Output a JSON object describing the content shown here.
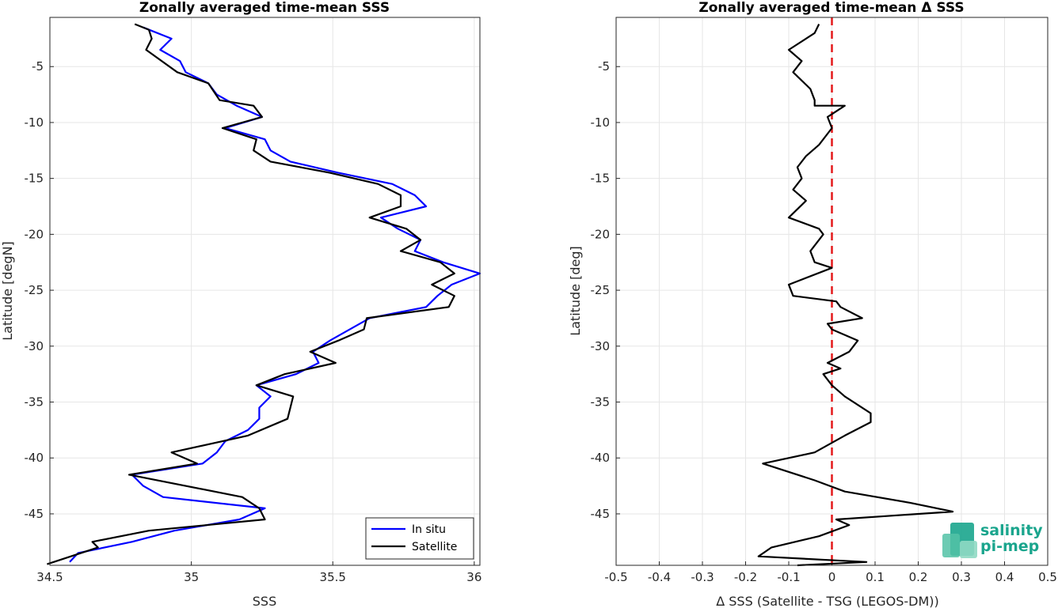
{
  "chart_data": [
    {
      "type": "line",
      "title": "Zonally averaged time-mean SSS",
      "xlabel": "SSS",
      "ylabel": "Latitude [degN]",
      "xlim": [
        34.5,
        36.02
      ],
      "ylim": [
        -49.6,
        -0.6
      ],
      "xticks": [
        34.5,
        35,
        35.5,
        36
      ],
      "xtick_labels": [
        "34.5",
        "35",
        "35.5",
        "36"
      ],
      "yticks": [
        -5,
        -10,
        -15,
        -20,
        -25,
        -30,
        -35,
        -40,
        -45
      ],
      "ytick_labels": [
        "-5",
        "-10",
        "-15",
        "-20",
        "-25",
        "-30",
        "-35",
        "-40",
        "-45"
      ],
      "grid": true,
      "legend": "bottom-right",
      "series": [
        {
          "name": "In situ",
          "color": "#0000ff",
          "points": [
            [
              34.83,
              -1.5
            ],
            [
              34.93,
              -2.5
            ],
            [
              34.89,
              -3.5
            ],
            [
              34.96,
              -4.5
            ],
            [
              34.98,
              -5.5
            ],
            [
              35.06,
              -6.5
            ],
            [
              35.09,
              -7.5
            ],
            [
              35.16,
              -8.5
            ],
            [
              35.25,
              -9.5
            ],
            [
              35.12,
              -10.5
            ],
            [
              35.26,
              -11.5
            ],
            [
              35.28,
              -12.5
            ],
            [
              35.35,
              -13.5
            ],
            [
              35.52,
              -14.5
            ],
            [
              35.71,
              -15.5
            ],
            [
              35.79,
              -16.5
            ],
            [
              35.83,
              -17.5
            ],
            [
              35.67,
              -18.5
            ],
            [
              35.73,
              -19.5
            ],
            [
              35.81,
              -20.5
            ],
            [
              35.79,
              -21.5
            ],
            [
              35.89,
              -22.5
            ],
            [
              36.02,
              -23.5
            ],
            [
              35.92,
              -24.5
            ],
            [
              35.87,
              -25.5
            ],
            [
              35.83,
              -26.5
            ],
            [
              35.63,
              -27.5
            ],
            [
              35.49,
              -29.5
            ],
            [
              35.43,
              -30.5
            ],
            [
              35.45,
              -31.5
            ],
            [
              35.37,
              -32.5
            ],
            [
              35.23,
              -33.5
            ],
            [
              35.28,
              -34.5
            ],
            [
              35.24,
              -35.5
            ],
            [
              35.24,
              -36.5
            ],
            [
              35.2,
              -37.5
            ],
            [
              35.12,
              -38.5
            ],
            [
              35.09,
              -39.5
            ],
            [
              35.04,
              -40.5
            ],
            [
              34.79,
              -41.5
            ],
            [
              34.83,
              -42.5
            ],
            [
              34.9,
              -43.5
            ],
            [
              35.26,
              -44.5
            ],
            [
              35.17,
              -45.5
            ],
            [
              34.94,
              -46.5
            ],
            [
              34.79,
              -47.5
            ],
            [
              34.6,
              -48.5
            ],
            [
              34.57,
              -49.3
            ]
          ]
        },
        {
          "name": "Satellite",
          "color": "#000000",
          "points": [
            [
              34.8,
              -1.2
            ],
            [
              34.85,
              -1.7
            ],
            [
              34.86,
              -2.5
            ],
            [
              34.84,
              -3.5
            ],
            [
              34.95,
              -5.5
            ],
            [
              35.06,
              -6.5
            ],
            [
              35.1,
              -8.0
            ],
            [
              35.22,
              -8.5
            ],
            [
              35.25,
              -9.5
            ],
            [
              35.11,
              -10.5
            ],
            [
              35.23,
              -11.5
            ],
            [
              35.22,
              -12.5
            ],
            [
              35.28,
              -13.5
            ],
            [
              35.49,
              -14.5
            ],
            [
              35.66,
              -15.5
            ],
            [
              35.74,
              -16.5
            ],
            [
              35.74,
              -17.5
            ],
            [
              35.63,
              -18.5
            ],
            [
              35.76,
              -19.5
            ],
            [
              35.81,
              -20.5
            ],
            [
              35.74,
              -21.5
            ],
            [
              35.88,
              -22.5
            ],
            [
              35.93,
              -23.5
            ],
            [
              35.85,
              -24.5
            ],
            [
              35.93,
              -25.5
            ],
            [
              35.91,
              -26.5
            ],
            [
              35.62,
              -27.5
            ],
            [
              35.61,
              -28.5
            ],
            [
              35.52,
              -29.5
            ],
            [
              35.42,
              -30.5
            ],
            [
              35.51,
              -31.5
            ],
            [
              35.33,
              -32.5
            ],
            [
              35.23,
              -33.5
            ],
            [
              35.36,
              -34.5
            ],
            [
              35.34,
              -36.5
            ],
            [
              35.2,
              -38.0
            ],
            [
              34.93,
              -39.5
            ],
            [
              35.02,
              -40.5
            ],
            [
              34.78,
              -41.5
            ],
            [
              35.18,
              -43.5
            ],
            [
              35.24,
              -44.5
            ],
            [
              35.26,
              -45.5
            ],
            [
              34.85,
              -46.5
            ],
            [
              34.65,
              -47.5
            ],
            [
              34.67,
              -48.0
            ],
            [
              34.49,
              -49.5
            ]
          ]
        }
      ]
    },
    {
      "type": "line",
      "title": "Zonally averaged time-mean Δ SSS",
      "xlabel": "Δ SSS (Satellite - TSG (LEGOS-DM))",
      "ylabel": "Latitude [deg]",
      "xlim": [
        -0.5,
        0.5
      ],
      "ylim": [
        -49.6,
        -0.6
      ],
      "xticks": [
        -0.5,
        -0.4,
        -0.3,
        -0.2,
        -0.1,
        0,
        0.1,
        0.2,
        0.3,
        0.4,
        0.5
      ],
      "xtick_labels": [
        "-0.5",
        "-0.4",
        "-0.3",
        "-0.2",
        "-0.1",
        "0",
        "0.1",
        "0.2",
        "0.3",
        "0.4",
        "0.5"
      ],
      "yticks": [
        -5,
        -10,
        -15,
        -20,
        -25,
        -30,
        -35,
        -40,
        -45
      ],
      "ytick_labels": [
        "-5",
        "-10",
        "-15",
        "-20",
        "-25",
        "-30",
        "-35",
        "-40",
        "-45"
      ],
      "grid": true,
      "reference_line": {
        "x": 0,
        "color": "#e41a1c",
        "style": "dashed"
      },
      "series": [
        {
          "color": "#000000",
          "points": [
            [
              -0.03,
              -1.2
            ],
            [
              -0.04,
              -2.0
            ],
            [
              -0.1,
              -3.5
            ],
            [
              -0.07,
              -4.5
            ],
            [
              -0.09,
              -5.5
            ],
            [
              -0.05,
              -7.0
            ],
            [
              -0.04,
              -8.0
            ],
            [
              -0.04,
              -8.5
            ],
            [
              0.03,
              -8.5
            ],
            [
              -0.01,
              -9.5
            ],
            [
              -0.0,
              -10.5
            ],
            [
              -0.03,
              -12.0
            ],
            [
              -0.06,
              -13.0
            ],
            [
              -0.08,
              -14.0
            ],
            [
              -0.07,
              -15.0
            ],
            [
              -0.09,
              -16.0
            ],
            [
              -0.06,
              -17.0
            ],
            [
              -0.1,
              -18.5
            ],
            [
              -0.03,
              -19.5
            ],
            [
              -0.02,
              -20.0
            ],
            [
              -0.05,
              -21.5
            ],
            [
              -0.04,
              -22.5
            ],
            [
              0.0,
              -23.0
            ],
            [
              -0.1,
              -24.5
            ],
            [
              -0.09,
              -25.5
            ],
            [
              0.01,
              -26.0
            ],
            [
              0.02,
              -26.5
            ],
            [
              0.07,
              -27.5
            ],
            [
              -0.01,
              -28.0
            ],
            [
              0.0,
              -28.5
            ],
            [
              0.06,
              -29.5
            ],
            [
              0.04,
              -30.5
            ],
            [
              -0.01,
              -31.5
            ],
            [
              0.02,
              -32.0
            ],
            [
              -0.02,
              -32.5
            ],
            [
              0.0,
              -33.5
            ],
            [
              0.03,
              -34.5
            ],
            [
              0.09,
              -36.0
            ],
            [
              0.09,
              -36.8
            ],
            [
              0.03,
              -38.0
            ],
            [
              -0.04,
              -39.5
            ],
            [
              -0.16,
              -40.5
            ],
            [
              -0.04,
              -42.0
            ],
            [
              0.03,
              -43.0
            ],
            [
              0.18,
              -44.0
            ],
            [
              0.28,
              -44.8
            ],
            [
              0.01,
              -45.5
            ],
            [
              0.04,
              -46.0
            ],
            [
              -0.03,
              -47.0
            ],
            [
              -0.14,
              -48.0
            ],
            [
              -0.17,
              -48.8
            ],
            [
              0.08,
              -49.3
            ],
            [
              -0.08,
              -49.6
            ]
          ]
        }
      ]
    }
  ],
  "legend": {
    "items": [
      {
        "label": "In situ",
        "color": "#0000ff"
      },
      {
        "label": "Satellite",
        "color": "#000000"
      }
    ]
  },
  "logo": {
    "line1": "salinity",
    "line2": "pi-mep",
    "color": "#1aa58d"
  }
}
